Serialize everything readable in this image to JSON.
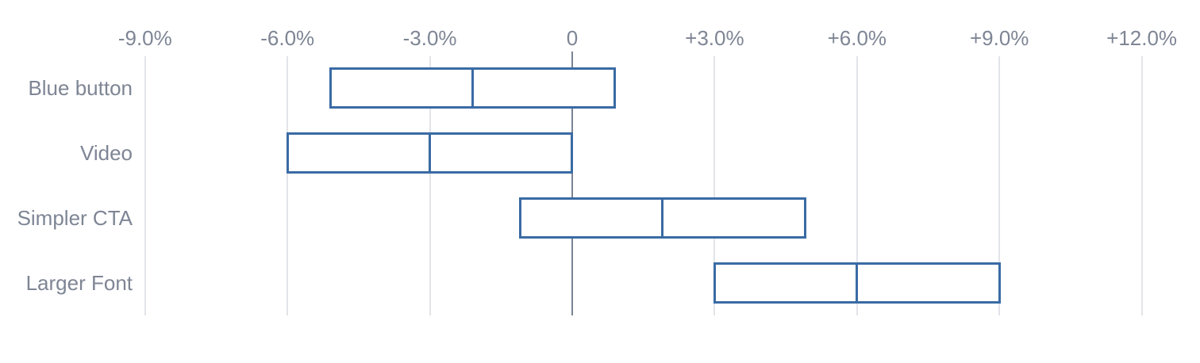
{
  "chart_data": {
    "type": "bar",
    "subtype": "horizontal-range-interval",
    "title": "",
    "xlabel": "",
    "ylabel": "",
    "units": "percent",
    "categories": [
      "Blue button",
      "Video",
      "Simpler CTA",
      "Larger Font"
    ],
    "series": [
      {
        "name": "low",
        "values": [
          -5.1,
          -6.0,
          -1.1,
          3.0
        ]
      },
      {
        "name": "mid",
        "values": [
          -2.1,
          -3.0,
          1.9,
          6.0
        ]
      },
      {
        "name": "high",
        "values": [
          0.9,
          0.0,
          4.9,
          9.0
        ]
      }
    ],
    "x_ticks": [
      {
        "value": -9,
        "label": "-9.0%"
      },
      {
        "value": -6,
        "label": "-6.0%"
      },
      {
        "value": -3,
        "label": "-3.0%"
      },
      {
        "value": 0,
        "label": "0"
      },
      {
        "value": 3,
        "label": "+3.0%"
      },
      {
        "value": 6,
        "label": "+6.0%"
      },
      {
        "value": 9,
        "label": "+9.0%"
      },
      {
        "value": 12,
        "label": "+12.0%"
      }
    ],
    "xlim": [
      -9,
      12
    ],
    "grid": "vertical",
    "legend": "none"
  },
  "style": {
    "background": "#ffffff",
    "box_border_color": "#3a6ba4",
    "box_fill_color": "#ffffff",
    "grid_color": "#e2e4e9",
    "zero_line_color": "#7b8393",
    "label_color": "#7e8594"
  }
}
